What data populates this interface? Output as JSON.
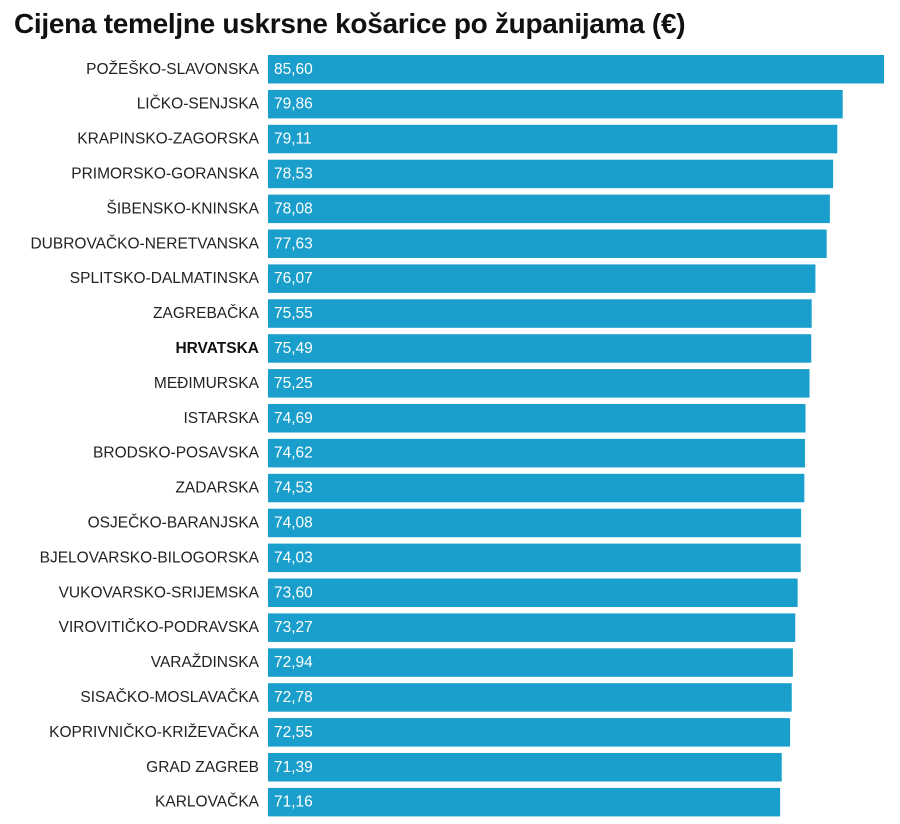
{
  "chart_data": {
    "type": "bar",
    "orientation": "horizontal",
    "title": "Cijena temeljne uskrsne košarice po županijama (€)",
    "categories": [
      "POŽEŠKO-SLAVONSKA",
      "LIČKO-SENJSKA",
      "KRAPINSKO-ZAGORSKA",
      "PRIMORSKO-GORANSKA",
      "ŠIBENSKO-KNINSKA",
      "DUBROVAČKO-NERETVANSKA",
      "SPLITSKO-DALMATINSKA",
      "ZAGREBAČKA",
      "HRVATSKA",
      "MEĐIMURSKA",
      "ISTARSKA",
      "BRODSKO-POSAVSKA",
      "ZADARSKA",
      "OSJEČKO-BARANJSKA",
      "BJELOVARSKO-BILOGORSKA",
      "VUKOVARSKO-SRIJEMSKA",
      "VIROVITIČKO-PODRAVSKA",
      "VARAŽDINSKA",
      "SISAČKO-MOSLAVAČKA",
      "KOPRIVNIČKO-KRIŽEVAČKA",
      "GRAD ZAGREB",
      "KARLOVAČKA"
    ],
    "values": [
      85.6,
      79.86,
      79.11,
      78.53,
      78.08,
      77.63,
      76.07,
      75.55,
      75.49,
      75.25,
      74.69,
      74.62,
      74.53,
      74.08,
      74.03,
      73.6,
      73.27,
      72.94,
      72.78,
      72.55,
      71.39,
      71.16
    ],
    "value_labels": [
      "85,60",
      "79,86",
      "79,11",
      "78,53",
      "78,08",
      "77,63",
      "76,07",
      "75,55",
      "75,49",
      "75,25",
      "74,69",
      "74,62",
      "74,53",
      "74,08",
      "74,03",
      "73,60",
      "73,27",
      "72,94",
      "72,78",
      "72,55",
      "71,39",
      "71,16"
    ],
    "highlight_category": "HRVATSKA",
    "xlim": [
      0,
      85.6
    ],
    "bar_color": "#1a9fcc",
    "label_color": "#222222",
    "value_label_color": "#ffffff",
    "grid": false,
    "legend": "none"
  }
}
